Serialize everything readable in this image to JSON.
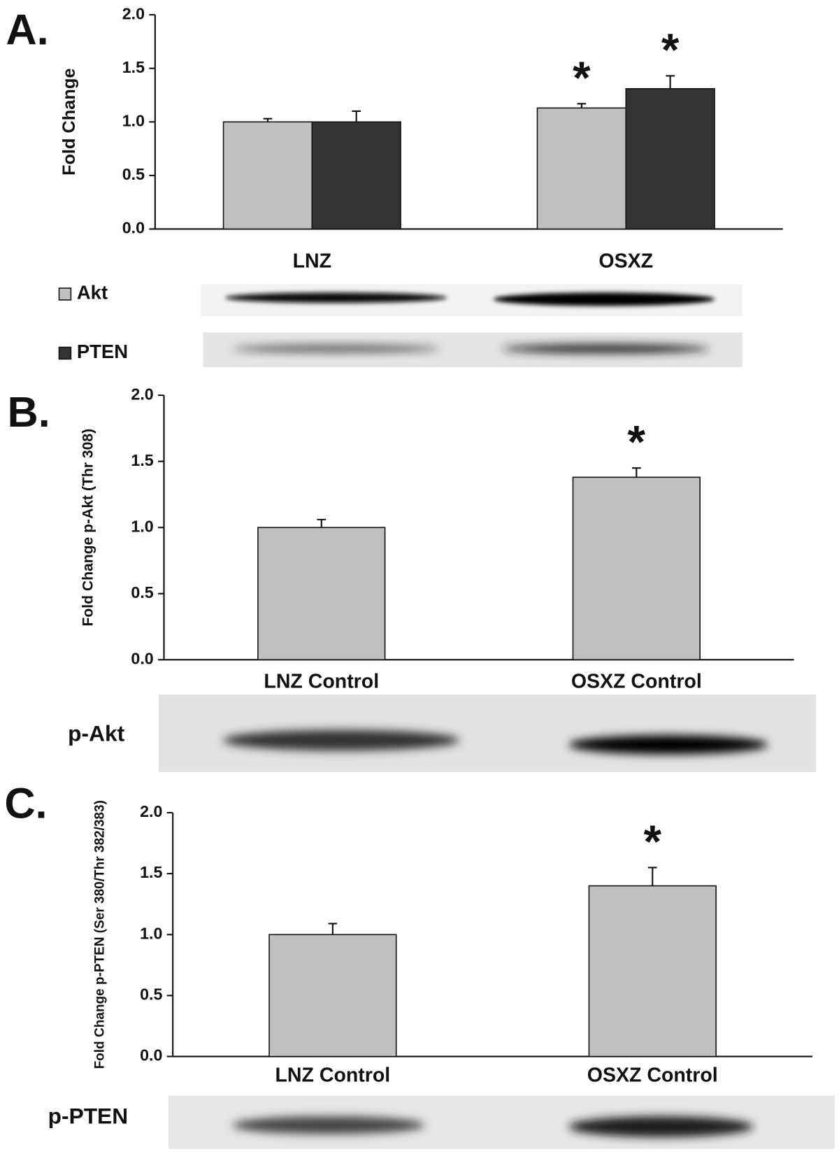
{
  "chart_data": [
    {
      "type": "bar",
      "panel": "A.",
      "ylabel": "Fold Change",
      "categories": [
        "LNZ",
        "OSXZ"
      ],
      "series": [
        {
          "name": "Akt",
          "color": "#c0c0c0",
          "values": [
            1.0,
            1.13
          ],
          "errors": [
            0.03,
            0.04
          ],
          "significance": [
            null,
            "*"
          ]
        },
        {
          "name": "PTEN",
          "color": "#333333",
          "values": [
            1.0,
            1.31
          ],
          "errors": [
            0.1,
            0.12
          ],
          "significance": [
            null,
            "*"
          ]
        }
      ],
      "ylim": [
        0,
        2
      ],
      "yticks": [
        {
          "value": 0,
          "label": "0.0"
        },
        {
          "value": 0.5,
          "label": "0.5"
        },
        {
          "value": 1,
          "label": "1.0"
        },
        {
          "value": 1.5,
          "label": "1.5"
        },
        {
          "value": 2,
          "label": "2.0"
        }
      ]
    },
    {
      "type": "bar",
      "panel": "B.",
      "ylabel": "Fold Change p-Akt (Thr 308)",
      "categories": [
        "LNZ  Control",
        "OSXZ  Control"
      ],
      "series": [
        {
          "color": "#c0c0c0",
          "values": [
            1.0,
            1.38
          ],
          "errors": [
            0.06,
            0.07
          ],
          "significance": [
            null,
            "*"
          ]
        }
      ],
      "ylim": [
        0,
        2
      ],
      "yticks": [
        {
          "value": 0,
          "label": "0.0"
        },
        {
          "value": 0.5,
          "label": "0.5"
        },
        {
          "value": 1,
          "label": "1.0"
        },
        {
          "value": 1.5,
          "label": "1.5"
        },
        {
          "value": 2,
          "label": "2.0"
        }
      ],
      "blot_label": "p-Akt"
    },
    {
      "type": "bar",
      "panel": "C.",
      "ylabel": "Fold Change p-PTEN (Ser 380/Thr 382/383)",
      "categories": [
        "LNZ  Control",
        "OSXZ  Control"
      ],
      "series": [
        {
          "color": "#c0c0c0",
          "values": [
            1.0,
            1.4
          ],
          "errors": [
            0.09,
            0.15
          ],
          "significance": [
            null,
            "*"
          ]
        }
      ],
      "ylim": [
        0,
        2
      ],
      "yticks": [
        {
          "value": 0,
          "label": "0.0"
        },
        {
          "value": 0.5,
          "label": "0.5"
        },
        {
          "value": 1,
          "label": "1.0"
        },
        {
          "value": 1.5,
          "label": "1.5"
        },
        {
          "value": 2,
          "label": "2.0"
        }
      ],
      "blot_label": "p-PTEN"
    }
  ]
}
